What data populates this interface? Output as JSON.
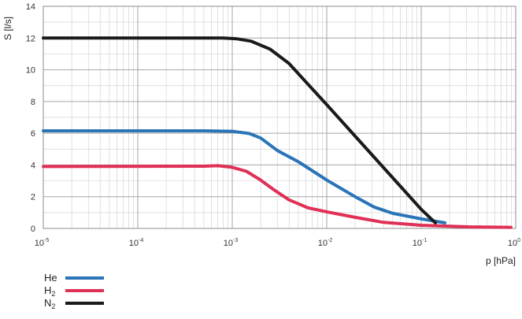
{
  "chart_data": {
    "type": "line",
    "title": "",
    "xlabel": "p [hPa]",
    "ylabel": "S [l/s]",
    "xscale": "log",
    "xlim_exp": [
      -5,
      0
    ],
    "ylim": [
      0,
      14
    ],
    "grid": true,
    "x_ticks": [
      {
        "base": "10",
        "exp": "-5"
      },
      {
        "base": "10",
        "exp": "-4"
      },
      {
        "base": "10",
        "exp": "-3"
      },
      {
        "base": "10",
        "exp": "-2"
      },
      {
        "base": "10",
        "exp": "-1"
      },
      {
        "base": "10",
        "exp": "0"
      }
    ],
    "y_ticks": [
      "0",
      "2",
      "4",
      "6",
      "8",
      "10",
      "12",
      "14"
    ],
    "legend_position": "bottom-left",
    "series": [
      {
        "name": "He",
        "legend_main": "He",
        "legend_sub": "",
        "color": "#2a74b8",
        "points": [
          [
            -5,
            6.15
          ],
          [
            -3.3,
            6.15
          ],
          [
            -3.0,
            6.12
          ],
          [
            -2.82,
            5.98
          ],
          [
            -2.7,
            5.7
          ],
          [
            -2.52,
            4.9
          ],
          [
            -2.3,
            4.2
          ],
          [
            -2.0,
            3.05
          ],
          [
            -1.7,
            2.0
          ],
          [
            -1.5,
            1.35
          ],
          [
            -1.3,
            0.95
          ],
          [
            -1.0,
            0.6
          ],
          [
            -0.75,
            0.35
          ]
        ]
      },
      {
        "name": "H2",
        "legend_main": "H",
        "legend_sub": "2",
        "color": "#e03055",
        "points": [
          [
            -5,
            3.9
          ],
          [
            -3.3,
            3.92
          ],
          [
            -3.15,
            3.95
          ],
          [
            -3.0,
            3.85
          ],
          [
            -2.85,
            3.6
          ],
          [
            -2.7,
            3.05
          ],
          [
            -2.55,
            2.4
          ],
          [
            -2.4,
            1.8
          ],
          [
            -2.2,
            1.3
          ],
          [
            -2.0,
            1.05
          ],
          [
            -1.7,
            0.7
          ],
          [
            -1.4,
            0.38
          ],
          [
            -1.0,
            0.2
          ],
          [
            -0.5,
            0.1
          ],
          [
            -0.05,
            0.07
          ]
        ]
      },
      {
        "name": "N2",
        "legend_main": "N",
        "legend_sub": "2",
        "color": "#1a1a1a",
        "points": [
          [
            -5,
            12.0
          ],
          [
            -3.1,
            12.0
          ],
          [
            -2.95,
            11.95
          ],
          [
            -2.8,
            11.8
          ],
          [
            -2.6,
            11.3
          ],
          [
            -2.4,
            10.4
          ],
          [
            -2.0,
            7.8
          ],
          [
            -1.5,
            4.5
          ],
          [
            -1.0,
            1.2
          ],
          [
            -0.85,
            0.35
          ]
        ]
      }
    ]
  }
}
